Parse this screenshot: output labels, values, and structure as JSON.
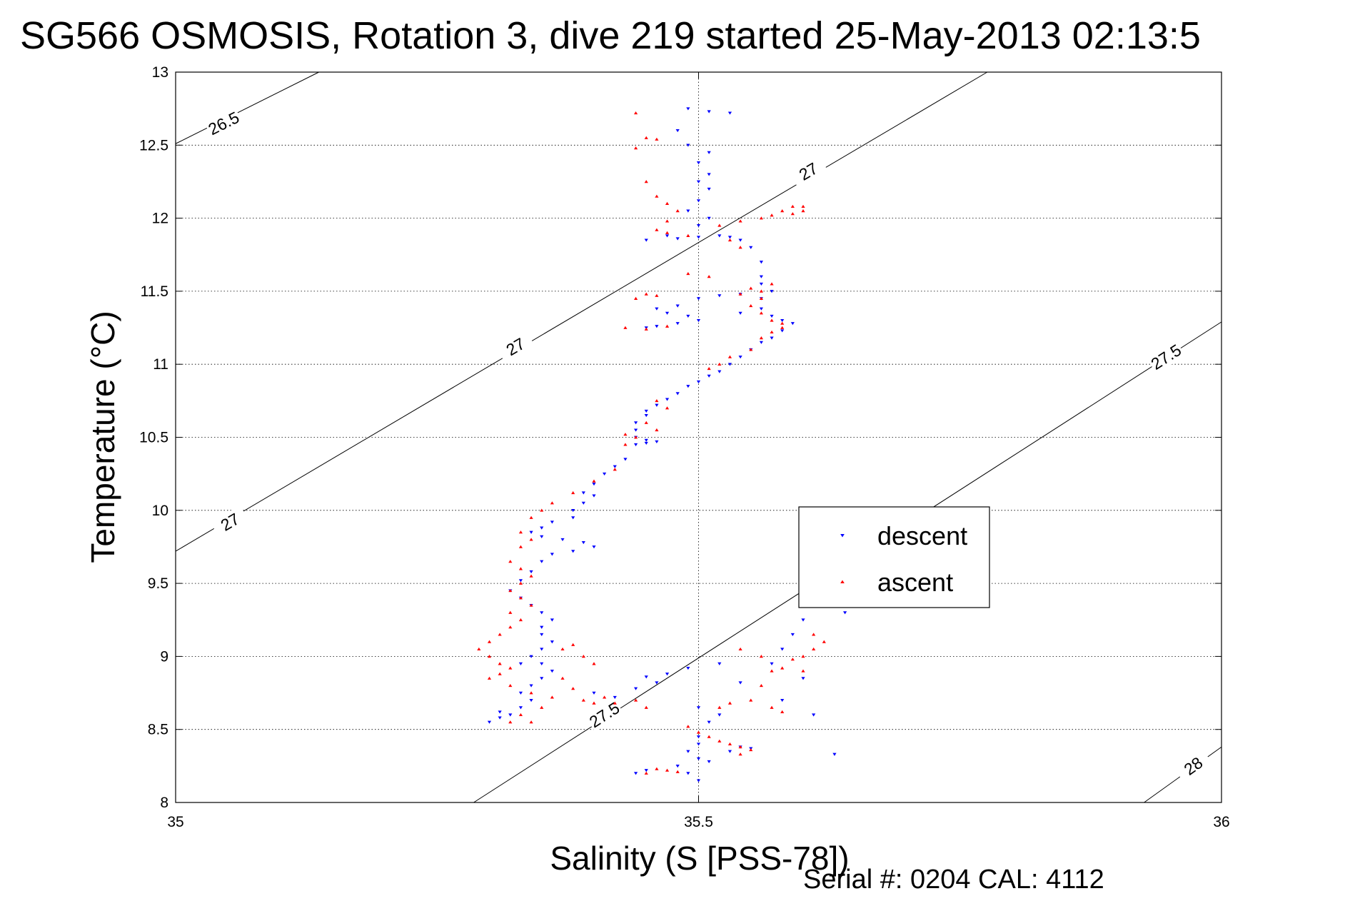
{
  "chart_data": {
    "type": "scatter",
    "title": "SG566 OSMOSIS, Rotation 3, dive 219 started 25-May-2013 02:13:5",
    "xlabel": "Salinity (S [PSS-78])",
    "ylabel": "Temperature (°C)",
    "xlim": [
      35,
      36
    ],
    "ylim": [
      8,
      13
    ],
    "xticks": [
      35,
      35.5,
      36
    ],
    "xtick_labels": [
      "35",
      "35.5",
      "36"
    ],
    "yticks": [
      8,
      8.5,
      9,
      9.5,
      10,
      10.5,
      11,
      11.5,
      12,
      12.5,
      13
    ],
    "ytick_labels": [
      "8",
      "8.5",
      "9",
      "9.5",
      "10",
      "10.5",
      "11",
      "11.5",
      "12",
      "12.5",
      "13"
    ],
    "grid": true,
    "legend_position": "right-center",
    "footer": "Serial #: 0204  CAL: 4112",
    "density_contours": [
      {
        "label": "26.5",
        "points": [
          [
            35.0,
            12.51
          ],
          [
            35.137,
            13.0
          ]
        ],
        "labels_at": [
          [
            35.046,
            12.65
          ]
        ]
      },
      {
        "label": "27",
        "points": [
          [
            35.0,
            9.72
          ],
          [
            35.776,
            13.0
          ]
        ],
        "labels_at": [
          [
            35.052,
            9.92
          ],
          [
            35.325,
            11.12
          ],
          [
            35.605,
            12.32
          ]
        ]
      },
      {
        "label": "27.5",
        "points": [
          [
            35.285,
            8.0
          ],
          [
            36.0,
            11.29
          ]
        ],
        "labels_at": [
          [
            35.41,
            8.6
          ],
          [
            35.947,
            11.05
          ]
        ]
      },
      {
        "label": "28",
        "points": [
          [
            35.926,
            8.0
          ],
          [
            36.0,
            8.38
          ]
        ],
        "labels_at": [
          [
            35.973,
            8.25
          ]
        ]
      }
    ],
    "series": [
      {
        "name": "descent",
        "color": "#0000ff",
        "marker": "down-triangle",
        "points": [
          [
            35.49,
            12.75
          ],
          [
            35.51,
            12.73
          ],
          [
            35.53,
            12.72
          ],
          [
            35.48,
            12.6
          ],
          [
            35.49,
            12.5
          ],
          [
            35.51,
            12.45
          ],
          [
            35.5,
            12.38
          ],
          [
            35.51,
            12.3
          ],
          [
            35.5,
            12.25
          ],
          [
            35.51,
            12.2
          ],
          [
            35.5,
            12.12
          ],
          [
            35.49,
            12.05
          ],
          [
            35.51,
            12.0
          ],
          [
            35.5,
            11.95
          ],
          [
            35.47,
            11.88
          ],
          [
            35.45,
            11.85
          ],
          [
            35.48,
            11.86
          ],
          [
            35.5,
            11.87
          ],
          [
            35.52,
            11.88
          ],
          [
            35.53,
            11.87
          ],
          [
            35.54,
            11.85
          ],
          [
            35.55,
            11.8
          ],
          [
            35.56,
            11.7
          ],
          [
            35.56,
            11.6
          ],
          [
            35.56,
            11.55
          ],
          [
            35.57,
            11.5
          ],
          [
            35.56,
            11.45
          ],
          [
            35.54,
            11.48
          ],
          [
            35.52,
            11.47
          ],
          [
            35.5,
            11.45
          ],
          [
            35.48,
            11.4
          ],
          [
            35.46,
            11.38
          ],
          [
            35.47,
            11.35
          ],
          [
            35.49,
            11.33
          ],
          [
            35.5,
            11.3
          ],
          [
            35.48,
            11.28
          ],
          [
            35.46,
            11.26
          ],
          [
            35.45,
            11.25
          ],
          [
            35.54,
            11.35
          ],
          [
            35.56,
            11.38
          ],
          [
            35.57,
            11.33
          ],
          [
            35.58,
            11.3
          ],
          [
            35.59,
            11.28
          ],
          [
            35.58,
            11.23
          ],
          [
            35.57,
            11.18
          ],
          [
            35.56,
            11.15
          ],
          [
            35.55,
            11.1
          ],
          [
            35.54,
            11.05
          ],
          [
            35.53,
            11.0
          ],
          [
            35.52,
            10.95
          ],
          [
            35.51,
            10.92
          ],
          [
            35.5,
            10.88
          ],
          [
            35.49,
            10.85
          ],
          [
            35.48,
            10.8
          ],
          [
            35.47,
            10.76
          ],
          [
            35.46,
            10.72
          ],
          [
            35.45,
            10.68
          ],
          [
            35.45,
            10.65
          ],
          [
            35.44,
            10.6
          ],
          [
            35.44,
            10.55
          ],
          [
            35.44,
            10.5
          ],
          [
            35.45,
            10.48
          ],
          [
            35.46,
            10.47
          ],
          [
            35.45,
            10.46
          ],
          [
            35.44,
            10.45
          ],
          [
            35.43,
            10.35
          ],
          [
            35.42,
            10.3
          ],
          [
            35.41,
            10.25
          ],
          [
            35.4,
            10.18
          ],
          [
            35.39,
            10.12
          ],
          [
            35.4,
            10.1
          ],
          [
            35.39,
            10.05
          ],
          [
            35.38,
            10.0
          ],
          [
            35.38,
            9.95
          ],
          [
            35.36,
            9.92
          ],
          [
            35.35,
            9.88
          ],
          [
            35.34,
            9.85
          ],
          [
            35.35,
            9.82
          ],
          [
            35.37,
            9.8
          ],
          [
            35.39,
            9.78
          ],
          [
            35.4,
            9.75
          ],
          [
            35.38,
            9.72
          ],
          [
            35.36,
            9.7
          ],
          [
            35.35,
            9.65
          ],
          [
            35.34,
            9.58
          ],
          [
            35.33,
            9.52
          ],
          [
            35.32,
            9.45
          ],
          [
            35.33,
            9.4
          ],
          [
            35.34,
            9.35
          ],
          [
            35.35,
            9.3
          ],
          [
            35.36,
            9.25
          ],
          [
            35.35,
            9.2
          ],
          [
            35.35,
            9.15
          ],
          [
            35.36,
            9.1
          ],
          [
            35.35,
            9.05
          ],
          [
            35.34,
            9.0
          ],
          [
            35.33,
            8.95
          ],
          [
            35.35,
            8.95
          ],
          [
            35.36,
            8.9
          ],
          [
            35.35,
            8.85
          ],
          [
            35.34,
            8.8
          ],
          [
            35.33,
            8.75
          ],
          [
            35.34,
            8.7
          ],
          [
            35.33,
            8.65
          ],
          [
            35.32,
            8.6
          ],
          [
            35.31,
            8.58
          ],
          [
            35.3,
            8.55
          ],
          [
            35.31,
            8.62
          ],
          [
            35.4,
            8.75
          ],
          [
            35.42,
            8.72
          ],
          [
            35.44,
            8.78
          ],
          [
            35.45,
            8.86
          ],
          [
            35.47,
            8.88
          ],
          [
            35.49,
            8.92
          ],
          [
            35.46,
            8.82
          ],
          [
            35.52,
            8.95
          ],
          [
            35.54,
            8.82
          ],
          [
            35.5,
            8.65
          ],
          [
            35.52,
            8.6
          ],
          [
            35.51,
            8.55
          ],
          [
            35.5,
            8.45
          ],
          [
            35.5,
            8.4
          ],
          [
            35.49,
            8.35
          ],
          [
            35.5,
            8.3
          ],
          [
            35.51,
            8.28
          ],
          [
            35.48,
            8.25
          ],
          [
            35.49,
            8.2
          ],
          [
            35.5,
            8.15
          ],
          [
            35.45,
            8.22
          ],
          [
            35.44,
            8.2
          ],
          [
            35.53,
            8.35
          ],
          [
            35.54,
            8.38
          ],
          [
            35.55,
            8.37
          ],
          [
            35.57,
            8.95
          ],
          [
            35.58,
            9.05
          ],
          [
            35.59,
            9.15
          ],
          [
            35.6,
            9.25
          ],
          [
            35.61,
            9.35
          ],
          [
            35.62,
            9.4
          ],
          [
            35.63,
            9.45
          ],
          [
            35.64,
            9.3
          ],
          [
            35.65,
            9.35
          ],
          [
            35.6,
            8.85
          ],
          [
            35.61,
            8.6
          ],
          [
            35.58,
            8.7
          ],
          [
            35.63,
            8.33
          ]
        ]
      },
      {
        "name": "ascent",
        "color": "#ff0000",
        "marker": "up-triangle",
        "points": [
          [
            35.44,
            12.72
          ],
          [
            35.45,
            12.55
          ],
          [
            35.46,
            12.54
          ],
          [
            35.44,
            12.48
          ],
          [
            35.45,
            12.25
          ],
          [
            35.46,
            12.15
          ],
          [
            35.47,
            12.1
          ],
          [
            35.48,
            12.05
          ],
          [
            35.47,
            11.98
          ],
          [
            35.46,
            11.92
          ],
          [
            35.47,
            11.9
          ],
          [
            35.49,
            11.88
          ],
          [
            35.52,
            11.95
          ],
          [
            35.54,
            11.98
          ],
          [
            35.56,
            12.0
          ],
          [
            35.57,
            12.02
          ],
          [
            35.58,
            12.05
          ],
          [
            35.59,
            12.08
          ],
          [
            35.6,
            12.08
          ],
          [
            35.6,
            12.05
          ],
          [
            35.59,
            12.03
          ],
          [
            35.53,
            11.85
          ],
          [
            35.54,
            11.8
          ],
          [
            35.51,
            11.6
          ],
          [
            35.49,
            11.62
          ],
          [
            35.55,
            11.52
          ],
          [
            35.56,
            11.5
          ],
          [
            35.57,
            11.55
          ],
          [
            35.56,
            11.45
          ],
          [
            35.55,
            11.4
          ],
          [
            35.56,
            11.35
          ],
          [
            35.57,
            11.3
          ],
          [
            35.58,
            11.28
          ],
          [
            35.57,
            11.22
          ],
          [
            35.56,
            11.18
          ],
          [
            35.55,
            11.1
          ],
          [
            35.53,
            11.05
          ],
          [
            35.52,
            11.0
          ],
          [
            35.51,
            10.97
          ],
          [
            35.54,
            11.48
          ],
          [
            35.58,
            11.25
          ],
          [
            35.44,
            11.45
          ],
          [
            35.45,
            11.48
          ],
          [
            35.46,
            11.47
          ],
          [
            35.43,
            11.25
          ],
          [
            35.45,
            11.24
          ],
          [
            35.47,
            11.26
          ],
          [
            35.46,
            10.75
          ],
          [
            35.47,
            10.7
          ],
          [
            35.45,
            10.6
          ],
          [
            35.46,
            10.55
          ],
          [
            35.44,
            10.5
          ],
          [
            35.43,
            10.52
          ],
          [
            35.43,
            10.45
          ],
          [
            35.42,
            10.28
          ],
          [
            35.4,
            10.2
          ],
          [
            35.38,
            10.12
          ],
          [
            35.36,
            10.05
          ],
          [
            35.35,
            10.0
          ],
          [
            35.34,
            9.95
          ],
          [
            35.33,
            9.85
          ],
          [
            35.34,
            9.8
          ],
          [
            35.33,
            9.75
          ],
          [
            35.32,
            9.65
          ],
          [
            35.33,
            9.6
          ],
          [
            35.34,
            9.55
          ],
          [
            35.33,
            9.5
          ],
          [
            35.32,
            9.45
          ],
          [
            35.33,
            9.4
          ],
          [
            35.34,
            9.35
          ],
          [
            35.32,
            9.3
          ],
          [
            35.33,
            9.25
          ],
          [
            35.32,
            9.2
          ],
          [
            35.31,
            9.15
          ],
          [
            35.3,
            9.1
          ],
          [
            35.29,
            9.05
          ],
          [
            35.3,
            9.0
          ],
          [
            35.31,
            8.95
          ],
          [
            35.32,
            8.92
          ],
          [
            35.31,
            8.88
          ],
          [
            35.3,
            8.85
          ],
          [
            35.32,
            8.8
          ],
          [
            35.34,
            8.75
          ],
          [
            35.36,
            8.72
          ],
          [
            35.35,
            8.65
          ],
          [
            35.33,
            8.6
          ],
          [
            35.32,
            8.55
          ],
          [
            35.34,
            8.55
          ],
          [
            35.37,
            9.05
          ],
          [
            35.38,
            9.08
          ],
          [
            35.39,
            9.0
          ],
          [
            35.4,
            8.95
          ],
          [
            35.37,
            8.85
          ],
          [
            35.38,
            8.78
          ],
          [
            35.39,
            8.7
          ],
          [
            35.4,
            8.68
          ],
          [
            35.41,
            8.72
          ],
          [
            35.42,
            8.68
          ],
          [
            35.44,
            8.7
          ],
          [
            35.45,
            8.65
          ],
          [
            35.49,
            8.52
          ],
          [
            35.5,
            8.48
          ],
          [
            35.51,
            8.45
          ],
          [
            35.52,
            8.42
          ],
          [
            35.53,
            8.4
          ],
          [
            35.54,
            8.38
          ],
          [
            35.55,
            8.36
          ],
          [
            35.54,
            8.33
          ],
          [
            35.52,
            8.65
          ],
          [
            35.53,
            8.68
          ],
          [
            35.55,
            8.7
          ],
          [
            35.46,
            8.23
          ],
          [
            35.47,
            8.22
          ],
          [
            35.48,
            8.21
          ],
          [
            35.45,
            8.2
          ],
          [
            35.56,
            8.8
          ],
          [
            35.57,
            8.9
          ],
          [
            35.58,
            8.92
          ],
          [
            35.59,
            8.98
          ],
          [
            35.6,
            9.0
          ],
          [
            35.61,
            9.05
          ],
          [
            35.62,
            9.1
          ],
          [
            35.61,
            9.15
          ],
          [
            35.6,
            8.9
          ],
          [
            35.57,
            8.65
          ],
          [
            35.58,
            8.62
          ],
          [
            35.56,
            9.0
          ],
          [
            35.54,
            9.05
          ]
        ]
      }
    ]
  }
}
